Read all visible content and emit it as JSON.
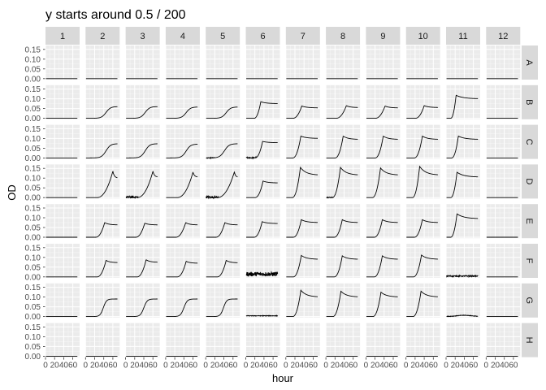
{
  "chart_data": {
    "type": "line",
    "title": "y starts around 0.5 / 200",
    "xlabel": "hour",
    "ylabel": "OD",
    "facet_cols": [
      "1",
      "2",
      "3",
      "4",
      "5",
      "6",
      "7",
      "8",
      "9",
      "10",
      "11",
      "12"
    ],
    "facet_rows": [
      "A",
      "B",
      "C",
      "D",
      "E",
      "F",
      "G",
      "H"
    ],
    "x_ticks": [
      0,
      20,
      40,
      60
    ],
    "x_tick_labels": [
      "0",
      "20",
      "40",
      "60"
    ],
    "xlim": [
      0,
      75
    ],
    "y_ticks": [
      0.0,
      0.05,
      0.1,
      0.15
    ],
    "y_tick_labels": [
      "0.00",
      "0.05",
      "0.10",
      "0.15"
    ],
    "ylim": [
      -0.005,
      0.17
    ],
    "grid": true,
    "panel_background": "#ebebeb",
    "strip_background": "#d9d9d9",
    "line_color": "#000000",
    "series": {
      "A": [
        "flat",
        "flat",
        "flat",
        "flat",
        "flat",
        "flat",
        "flat",
        "flat",
        "flat",
        "flat",
        "flat",
        "flat"
      ],
      "B": [
        {
          "type": "flat"
        },
        {
          "type": "sigmoid",
          "lag": 25,
          "rise": 40,
          "peak": 0.06,
          "noise": 0
        },
        {
          "type": "sigmoid",
          "lag": 23,
          "rise": 40,
          "peak": 0.06,
          "noise": 0
        },
        {
          "type": "sigmoid",
          "lag": 25,
          "rise": 40,
          "peak": 0.058,
          "noise": 0
        },
        {
          "type": "sigmoid",
          "lag": 25,
          "rise": 40,
          "peak": 0.058,
          "noise": 0
        },
        {
          "type": "spike",
          "lag": 18,
          "rise": 15,
          "peak": 0.085,
          "end": 0.075
        },
        {
          "type": "spike",
          "lag": 15,
          "rise": 20,
          "peak": 0.063,
          "end": 0.053
        },
        {
          "type": "spike",
          "lag": 22,
          "rise": 23,
          "peak": 0.065,
          "end": 0.055
        },
        {
          "type": "spike",
          "lag": 20,
          "rise": 22,
          "peak": 0.063,
          "end": 0.053
        },
        {
          "type": "spike",
          "lag": 20,
          "rise": 20,
          "peak": 0.065,
          "end": 0.055
        },
        {
          "type": "spike",
          "lag": 10,
          "rise": 12,
          "peak": 0.118,
          "end": 0.1
        },
        {
          "type": "flat"
        }
      ],
      "C": [
        {
          "type": "flat"
        },
        {
          "type": "sigmoid",
          "lag": 25,
          "rise": 40,
          "peak": 0.073,
          "noise": 0
        },
        {
          "type": "sigmoid",
          "lag": 23,
          "rise": 40,
          "peak": 0.073,
          "noise": 0
        },
        {
          "type": "sigmoid",
          "lag": 25,
          "rise": 40,
          "peak": 0.071,
          "noise": 0
        },
        {
          "type": "sigmoid",
          "lag": 20,
          "rise": 42,
          "peak": 0.073,
          "noise": 0.004
        },
        {
          "type": "spike",
          "lag": 20,
          "rise": 17,
          "peak": 0.085,
          "end": 0.078,
          "noise": 0.006
        },
        {
          "type": "spike",
          "lag": 15,
          "rise": 18,
          "peak": 0.112,
          "end": 0.1
        },
        {
          "type": "spike",
          "lag": 20,
          "rise": 18,
          "peak": 0.112,
          "end": 0.095
        },
        {
          "type": "spike",
          "lag": 20,
          "rise": 18,
          "peak": 0.112,
          "end": 0.095
        },
        {
          "type": "spike",
          "lag": 18,
          "rise": 18,
          "peak": 0.112,
          "end": 0.095
        },
        {
          "type": "spike",
          "lag": 12,
          "rise": 15,
          "peak": 0.112,
          "end": 0.095
        },
        {
          "type": "flat"
        }
      ],
      "D": [
        {
          "type": "flat"
        },
        {
          "type": "spike",
          "lag": 25,
          "rise": 35,
          "peak": 0.135,
          "end": 0.1
        },
        {
          "type": "spike",
          "lag": 25,
          "rise": 35,
          "peak": 0.135,
          "end": 0.105,
          "noise": 0.012
        },
        {
          "type": "spike",
          "lag": 25,
          "rise": 35,
          "peak": 0.13,
          "end": 0.105
        },
        {
          "type": "spike",
          "lag": 25,
          "rise": 38,
          "peak": 0.132,
          "end": 0.105,
          "noise": 0.012
        },
        {
          "type": "spike",
          "lag": 20,
          "rise": 18,
          "peak": 0.085,
          "end": 0.075
        },
        {
          "type": "spike",
          "lag": 14,
          "rise": 18,
          "peak": 0.155,
          "end": 0.115
        },
        {
          "type": "spike",
          "lag": 14,
          "rise": 18,
          "peak": 0.155,
          "end": 0.115,
          "noise": 0.004
        },
        {
          "type": "spike",
          "lag": 14,
          "rise": 18,
          "peak": 0.152,
          "end": 0.115
        },
        {
          "type": "spike",
          "lag": 14,
          "rise": 16,
          "peak": 0.16,
          "end": 0.115
        },
        {
          "type": "spike",
          "lag": 10,
          "rise": 14,
          "peak": 0.13,
          "end": 0.105
        },
        {
          "type": "flat"
        }
      ],
      "E": [
        {
          "type": "flat"
        },
        {
          "type": "spike",
          "lag": 22,
          "rise": 20,
          "peak": 0.075,
          "end": 0.063
        },
        {
          "type": "spike",
          "lag": 22,
          "rise": 20,
          "peak": 0.072,
          "end": 0.063
        },
        {
          "type": "spike",
          "lag": 22,
          "rise": 22,
          "peak": 0.075,
          "end": 0.063
        },
        {
          "type": "spike",
          "lag": 22,
          "rise": 20,
          "peak": 0.075,
          "end": 0.063
        },
        {
          "type": "spike",
          "lag": 18,
          "rise": 18,
          "peak": 0.08,
          "end": 0.07
        },
        {
          "type": "spike",
          "lag": 16,
          "rise": 18,
          "peak": 0.09,
          "end": 0.075
        },
        {
          "type": "spike",
          "lag": 18,
          "rise": 18,
          "peak": 0.09,
          "end": 0.075
        },
        {
          "type": "spike",
          "lag": 18,
          "rise": 18,
          "peak": 0.09,
          "end": 0.075
        },
        {
          "type": "spike",
          "lag": 18,
          "rise": 18,
          "peak": 0.09,
          "end": 0.075
        },
        {
          "type": "spike",
          "lag": 10,
          "rise": 14,
          "peak": 0.12,
          "end": 0.095
        },
        {
          "type": "flat"
        }
      ],
      "F": [
        {
          "type": "flat"
        },
        {
          "type": "spike",
          "lag": 25,
          "rise": 20,
          "peak": 0.085,
          "end": 0.073
        },
        {
          "type": "spike",
          "lag": 25,
          "rise": 20,
          "peak": 0.088,
          "end": 0.075
        },
        {
          "type": "spike",
          "lag": 25,
          "rise": 20,
          "peak": 0.08,
          "end": 0.07
        },
        {
          "type": "spike",
          "lag": 25,
          "rise": 20,
          "peak": 0.085,
          "end": 0.072
        },
        {
          "type": "noise",
          "level": 0.012,
          "amp": 0.022
        },
        {
          "type": "spike",
          "lag": 16,
          "rise": 18,
          "peak": 0.11,
          "end": 0.09
        },
        {
          "type": "spike",
          "lag": 18,
          "rise": 18,
          "peak": 0.108,
          "end": 0.09
        },
        {
          "type": "spike",
          "lag": 18,
          "rise": 18,
          "peak": 0.108,
          "end": 0.09
        },
        {
          "type": "spike",
          "lag": 16,
          "rise": 18,
          "peak": 0.112,
          "end": 0.09
        },
        {
          "type": "noise",
          "level": 0.004,
          "amp": 0.006
        },
        {
          "type": "flat"
        }
      ],
      "G": [
        {
          "type": "flat"
        },
        {
          "type": "sigmoid",
          "lag": 25,
          "rise": 28,
          "peak": 0.09,
          "noise": 0
        },
        {
          "type": "sigmoid",
          "lag": 25,
          "rise": 30,
          "peak": 0.09,
          "noise": 0
        },
        {
          "type": "sigmoid",
          "lag": 25,
          "rise": 30,
          "peak": 0.09,
          "noise": 0
        },
        {
          "type": "sigmoid",
          "lag": 25,
          "rise": 28,
          "peak": 0.09,
          "noise": 0
        },
        {
          "type": "noise",
          "level": 0.008,
          "amp": 0.003
        },
        {
          "type": "spike",
          "lag": 15,
          "rise": 18,
          "peak": 0.135,
          "end": 0.1
        },
        {
          "type": "spike",
          "lag": 15,
          "rise": 18,
          "peak": 0.13,
          "end": 0.1
        },
        {
          "type": "spike",
          "lag": 15,
          "rise": 18,
          "peak": 0.125,
          "end": 0.1
        },
        {
          "type": "spike",
          "lag": 15,
          "rise": 18,
          "peak": 0.13,
          "end": 0.1
        },
        {
          "type": "bump",
          "level": 0.006,
          "amp": 0.006
        },
        {
          "type": "flat"
        }
      ],
      "H": [
        "flat",
        "flat",
        "flat",
        "flat",
        "flat",
        "flat",
        "flat",
        "flat",
        "flat",
        "flat",
        "flat",
        "flat"
      ]
    }
  }
}
